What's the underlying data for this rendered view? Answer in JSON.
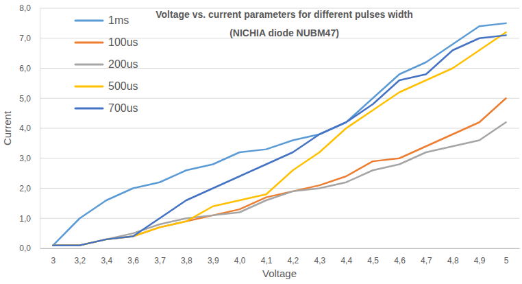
{
  "chart_data": {
    "type": "line",
    "title": "Voltage vs. current parameters for different pulses width",
    "subtitle": "(NICHIA diode NUBM47)",
    "x_label": "Voltage",
    "y_label": "Current",
    "categories": [
      "3",
      "3,2",
      "3,4",
      "3,6",
      "3,7",
      "3,8",
      "3,9",
      "4,0",
      "4,1",
      "4,2",
      "4,3",
      "4,4",
      "4,5",
      "4,6",
      "4,7",
      "4,8",
      "4,9",
      "5"
    ],
    "series": [
      {
        "name": "1ms",
        "color": "#5B9BD5",
        "values": [
          0.1,
          1.0,
          1.6,
          2.0,
          2.2,
          2.6,
          2.8,
          3.2,
          3.3,
          3.6,
          3.8,
          4.2,
          5.0,
          5.8,
          6.2,
          6.8,
          7.4,
          7.5
        ]
      },
      {
        "name": "100us",
        "color": "#ED7D31",
        "values": [
          0.1,
          0.1,
          0.3,
          0.4,
          0.7,
          0.9,
          1.1,
          1.3,
          1.7,
          1.9,
          2.1,
          2.4,
          2.9,
          3.0,
          3.4,
          3.8,
          4.2,
          5.0
        ]
      },
      {
        "name": "200us",
        "color": "#A5A5A5",
        "values": [
          0.1,
          0.1,
          0.3,
          0.5,
          0.8,
          1.0,
          1.1,
          1.2,
          1.6,
          1.9,
          2.0,
          2.2,
          2.6,
          2.8,
          3.2,
          3.4,
          3.6,
          4.2
        ]
      },
      {
        "name": "500us",
        "color": "#FFC000",
        "values": [
          0.1,
          0.1,
          0.3,
          0.4,
          0.7,
          0.9,
          1.4,
          1.6,
          1.8,
          2.6,
          3.2,
          4.0,
          4.6,
          5.2,
          5.6,
          6.0,
          6.6,
          7.2
        ]
      },
      {
        "name": "700us",
        "color": "#4472C4",
        "values": [
          0.1,
          0.1,
          0.3,
          0.4,
          1.0,
          1.6,
          2.0,
          2.4,
          2.8,
          3.2,
          3.8,
          4.2,
          4.8,
          5.6,
          5.8,
          6.6,
          7.0,
          7.1
        ]
      }
    ],
    "ylim": [
      0,
      8
    ],
    "yticks": [
      {
        "value": 0,
        "label": "0,0"
      },
      {
        "value": 1,
        "label": "1,0"
      },
      {
        "value": 2,
        "label": "2,0"
      },
      {
        "value": 3,
        "label": "3,0"
      },
      {
        "value": 4,
        "label": "4,0"
      },
      {
        "value": 5,
        "label": "5,0"
      },
      {
        "value": 6,
        "label": "6,0"
      },
      {
        "value": 7,
        "label": "7,0"
      },
      {
        "value": 8,
        "label": "8,0"
      }
    ],
    "grid": true,
    "legend": "upper left"
  }
}
